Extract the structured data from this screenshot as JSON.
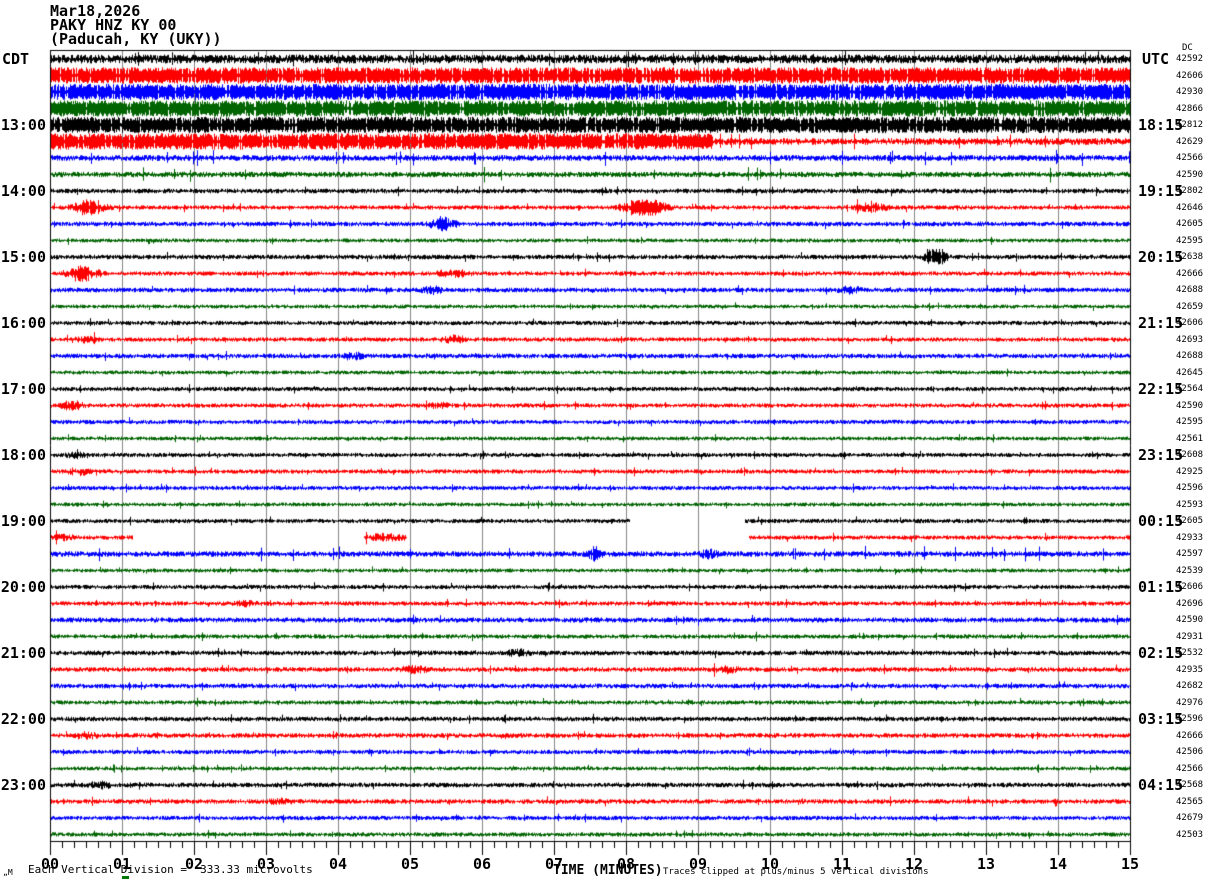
{
  "header": {
    "date": "Mar18,2026",
    "station_line": "PAKY HNZ KY 00",
    "site_line": "(Paducah, KY (UKY))"
  },
  "left_axis": {
    "tz_label": "CDT"
  },
  "right_axis": {
    "tz_label": "UTC",
    "dc_header": "DC"
  },
  "x_axis": {
    "ticks": [
      "00",
      "01",
      "02",
      "03",
      "04",
      "05",
      "06",
      "07",
      "08",
      "09",
      "10",
      "11",
      "12",
      "13",
      "14",
      "15"
    ],
    "title": "TIME (MINUTES)"
  },
  "footer": {
    "scale_note": "Each Vertical Division =  333.33 microvolts",
    "clip_note": "Traces clipped at plus/minus 5 vertical divisions",
    "watermark": "„M"
  },
  "chart_data": {
    "type": "seismogram",
    "title": "PAKY HNZ KY 00 (Paducah, KY (UKY)) Mar18,2026",
    "xlabel": "TIME (MINUTES)",
    "x_range_minutes": [
      0,
      15
    ],
    "row_duration_minutes": 15,
    "local_timezone": "CDT",
    "remote_timezone": "UTC",
    "scale": "333.33 microvolts per vertical division",
    "clipping": "plus/minus 5 vertical divisions",
    "colors": [
      "#000000",
      "#ff0000",
      "#0000ff",
      "#006400"
    ],
    "grid_color": "#848484",
    "rows": [
      {
        "start_cdt": "12:00",
        "color": 0,
        "dc": "42592",
        "amp": 4.5
      },
      {
        "start_cdt": "12:15",
        "color": 1,
        "dc": "42606",
        "amp": 9
      },
      {
        "start_cdt": "12:30",
        "color": 2,
        "dc": "42930",
        "amp": 10
      },
      {
        "start_cdt": "12:45",
        "color": 3,
        "dc": "42866",
        "amp": 10
      },
      {
        "start_cdt": "13:00",
        "color": 0,
        "dc": "42812",
        "amp": 12,
        "label_left": "13:00",
        "label_right": "18:15"
      },
      {
        "start_cdt": "13:15",
        "color": 1,
        "dc": "42629",
        "amp": 3.5,
        "loud_until": 9.2,
        "loud_amp": 9
      },
      {
        "start_cdt": "13:30",
        "color": 2,
        "dc": "42566",
        "amp": 3.0
      },
      {
        "start_cdt": "13:45",
        "color": 3,
        "dc": "42590",
        "amp": 2.8
      },
      {
        "start_cdt": "14:00",
        "color": 0,
        "dc": "42802",
        "amp": 2.4,
        "label_left": "14:00",
        "label_right": "19:15"
      },
      {
        "start_cdt": "14:15",
        "color": 1,
        "dc": "42646",
        "amp": 2.2,
        "bursts": [
          [
            0.2,
            0.9,
            3.0
          ],
          [
            7.8,
            8.7,
            3.2
          ],
          [
            11.1,
            11.7,
            2.4
          ]
        ]
      },
      {
        "start_cdt": "14:30",
        "color": 2,
        "dc": "42605",
        "amp": 2.4,
        "bursts": [
          [
            5.2,
            5.7,
            2.6
          ]
        ]
      },
      {
        "start_cdt": "14:45",
        "color": 3,
        "dc": "42595",
        "amp": 2.0
      },
      {
        "start_cdt": "15:00",
        "color": 0,
        "dc": "42638",
        "amp": 2.4,
        "bursts": [
          [
            12.1,
            12.5,
            3.6
          ]
        ],
        "label_left": "15:00",
        "label_right": "20:15"
      },
      {
        "start_cdt": "15:15",
        "color": 1,
        "dc": "42666",
        "amp": 2.2,
        "bursts": [
          [
            0.1,
            0.8,
            2.8
          ],
          [
            5.3,
            5.9,
            2.2
          ]
        ]
      },
      {
        "start_cdt": "15:30",
        "color": 2,
        "dc": "42688",
        "amp": 2.4,
        "bursts": [
          [
            5.1,
            5.5,
            2.2
          ],
          [
            10.9,
            11.3,
            2.0
          ]
        ]
      },
      {
        "start_cdt": "15:45",
        "color": 3,
        "dc": "42659",
        "amp": 2.0
      },
      {
        "start_cdt": "16:00",
        "color": 0,
        "dc": "42606",
        "amp": 2.2,
        "label_left": "16:00",
        "label_right": "21:15"
      },
      {
        "start_cdt": "16:15",
        "color": 1,
        "dc": "42693",
        "amp": 2.2,
        "bursts": [
          [
            0.3,
            0.7,
            2.0
          ],
          [
            5.4,
            5.8,
            2.4
          ]
        ]
      },
      {
        "start_cdt": "16:30",
        "color": 2,
        "dc": "42688",
        "amp": 2.4,
        "bursts": [
          [
            4.0,
            4.4,
            2.0
          ]
        ]
      },
      {
        "start_cdt": "16:45",
        "color": 3,
        "dc": "42645",
        "amp": 2.0
      },
      {
        "start_cdt": "17:00",
        "color": 0,
        "dc": "42564",
        "amp": 2.2,
        "label_left": "17:00",
        "label_right": "22:15"
      },
      {
        "start_cdt": "17:15",
        "color": 1,
        "dc": "42590",
        "amp": 2.2,
        "bursts": [
          [
            0.1,
            0.5,
            2.6
          ],
          [
            5.2,
            5.6,
            1.8
          ]
        ]
      },
      {
        "start_cdt": "17:30",
        "color": 2,
        "dc": "42595",
        "amp": 2.2
      },
      {
        "start_cdt": "17:45",
        "color": 3,
        "dc": "42561",
        "amp": 2.0
      },
      {
        "start_cdt": "18:00",
        "color": 0,
        "dc": "42608",
        "amp": 2.2,
        "bursts": [
          [
            0.2,
            0.5,
            2.0
          ]
        ],
        "label_left": "18:00",
        "label_right": "23:15"
      },
      {
        "start_cdt": "18:15",
        "color": 1,
        "dc": "42925",
        "amp": 2.2,
        "bursts": [
          [
            0.2,
            0.6,
            2.2
          ]
        ]
      },
      {
        "start_cdt": "18:30",
        "color": 2,
        "dc": "42596",
        "amp": 2.2
      },
      {
        "start_cdt": "18:45",
        "color": 3,
        "dc": "42593",
        "amp": 2.0
      },
      {
        "start_cdt": "19:00",
        "color": 0,
        "dc": "42605",
        "amp": 2.2,
        "segments": [
          [
            0,
            8.05
          ],
          [
            9.65,
            15
          ]
        ],
        "label_left": "19:00",
        "label_right": "00:15"
      },
      {
        "start_cdt": "19:15",
        "color": 1,
        "dc": "42933",
        "amp": 2.2,
        "segments": [
          [
            0,
            1.15
          ],
          [
            4.35,
            4.95
          ],
          [
            9.7,
            15
          ]
        ],
        "bursts": [
          [
            0.0,
            0.4,
            2.0
          ],
          [
            4.35,
            4.95,
            2.2
          ]
        ]
      },
      {
        "start_cdt": "19:30",
        "color": 2,
        "dc": "42597",
        "amp": 2.8,
        "bursts": [
          [
            7.4,
            7.7,
            2.2
          ],
          [
            9.0,
            9.3,
            2.0
          ]
        ]
      },
      {
        "start_cdt": "19:45",
        "color": 3,
        "dc": "42539",
        "amp": 2.0
      },
      {
        "start_cdt": "20:00",
        "color": 0,
        "dc": "42606",
        "amp": 2.2,
        "label_left": "20:00",
        "label_right": "01:15"
      },
      {
        "start_cdt": "20:15",
        "color": 1,
        "dc": "42696",
        "amp": 2.2,
        "bursts": [
          [
            2.5,
            2.9,
            1.8
          ]
        ]
      },
      {
        "start_cdt": "20:30",
        "color": 2,
        "dc": "42590",
        "amp": 2.6
      },
      {
        "start_cdt": "20:45",
        "color": 3,
        "dc": "42931",
        "amp": 2.2
      },
      {
        "start_cdt": "21:00",
        "color": 0,
        "dc": "42532",
        "amp": 2.4,
        "bursts": [
          [
            6.3,
            6.7,
            2.0
          ]
        ],
        "label_left": "21:00",
        "label_right": "02:15"
      },
      {
        "start_cdt": "21:15",
        "color": 1,
        "dc": "42935",
        "amp": 2.4,
        "bursts": [
          [
            4.8,
            5.3,
            2.0
          ],
          [
            9.2,
            9.6,
            2.0
          ]
        ]
      },
      {
        "start_cdt": "21:30",
        "color": 2,
        "dc": "42682",
        "amp": 2.4
      },
      {
        "start_cdt": "21:45",
        "color": 3,
        "dc": "42976",
        "amp": 2.2
      },
      {
        "start_cdt": "22:00",
        "color": 0,
        "dc": "42596",
        "amp": 2.4,
        "label_left": "22:00",
        "label_right": "03:15"
      },
      {
        "start_cdt": "22:15",
        "color": 1,
        "dc": "42666",
        "amp": 2.4,
        "bursts": [
          [
            0.3,
            0.7,
            2.0
          ]
        ]
      },
      {
        "start_cdt": "22:30",
        "color": 2,
        "dc": "42506",
        "amp": 2.2
      },
      {
        "start_cdt": "22:45",
        "color": 3,
        "dc": "42566",
        "amp": 2.0
      },
      {
        "start_cdt": "23:00",
        "color": 0,
        "dc": "42568",
        "amp": 2.4,
        "bursts": [
          [
            0.5,
            0.9,
            2.0
          ]
        ],
        "label_left": "23:00",
        "label_right": "04:15"
      },
      {
        "start_cdt": "23:15",
        "color": 1,
        "dc": "42565",
        "amp": 2.4,
        "bursts": [
          [
            3.0,
            3.4,
            1.8
          ]
        ]
      },
      {
        "start_cdt": "23:30",
        "color": 2,
        "dc": "42679",
        "amp": 2.2
      },
      {
        "start_cdt": "23:45",
        "color": 3,
        "dc": "42503",
        "amp": 2.2
      }
    ]
  }
}
